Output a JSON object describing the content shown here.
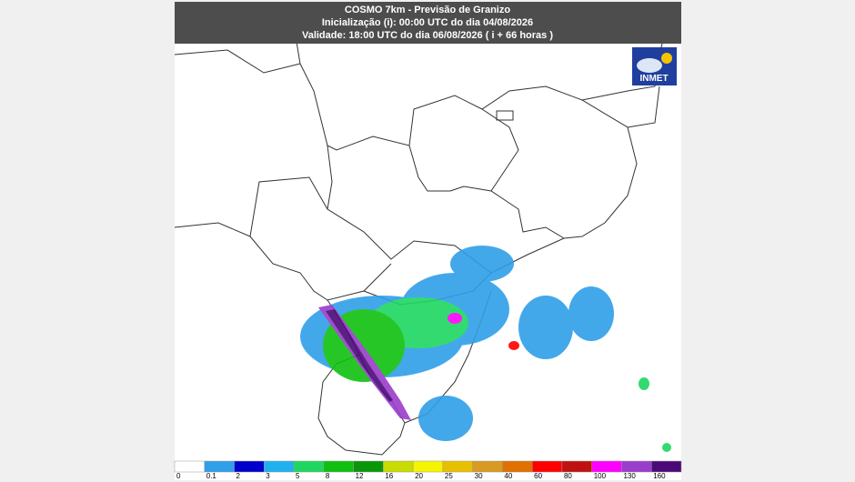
{
  "header": {
    "title": "COSMO 7km - Previsão de Granizo",
    "initialization": "Inicialização (i): 00:00 UTC do dia 04/08/2026",
    "validity": "Validade: 18:00 UTC do dia 06/08/2026 ( i + 66 horas )"
  },
  "logo": {
    "label": "INMET"
  },
  "legend": {
    "items": [
      {
        "label": "0",
        "color": "#ffffff"
      },
      {
        "label": "0.1",
        "color": "#2f9fe8"
      },
      {
        "label": "2",
        "color": "#0000cc"
      },
      {
        "label": "3",
        "color": "#1fb0f0"
      },
      {
        "label": "5",
        "color": "#1ed760"
      },
      {
        "label": "8",
        "color": "#10c010"
      },
      {
        "label": "12",
        "color": "#0a960a"
      },
      {
        "label": "16",
        "color": "#c8dc00"
      },
      {
        "label": "20",
        "color": "#f5f500"
      },
      {
        "label": "25",
        "color": "#e8c000"
      },
      {
        "label": "30",
        "color": "#d89a20"
      },
      {
        "label": "40",
        "color": "#e07000"
      },
      {
        "label": "60",
        "color": "#ff0000"
      },
      {
        "label": "80",
        "color": "#c01010"
      },
      {
        "label": "100",
        "color": "#ff00ff"
      },
      {
        "label": "130",
        "color": "#9a3ccc"
      },
      {
        "label": "160",
        "color": "#4b0a78"
      }
    ]
  }
}
